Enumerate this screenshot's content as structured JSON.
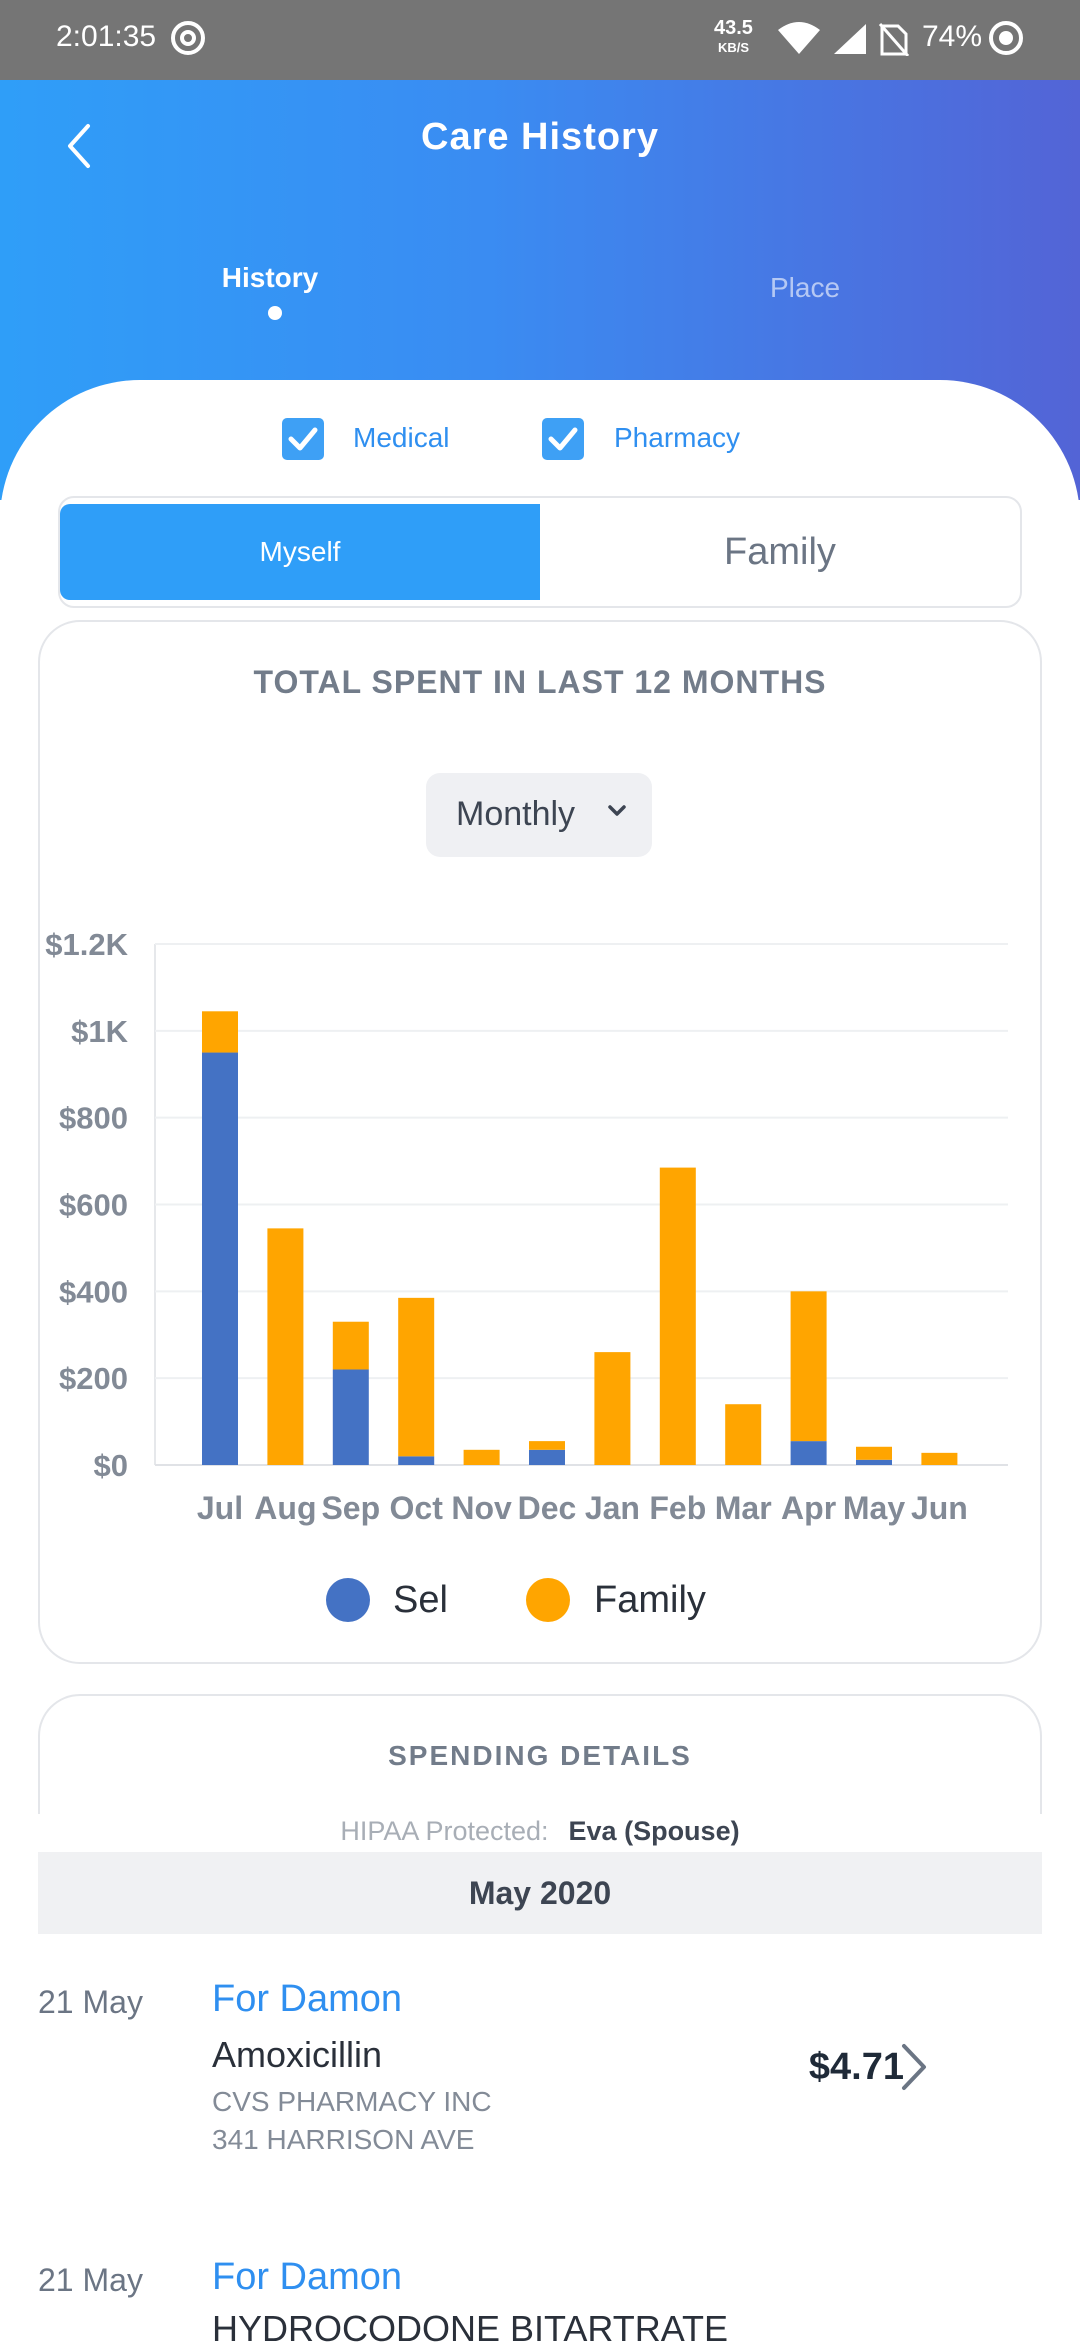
{
  "status_bar": {
    "time": "2:01:35",
    "net_speed": "43.5",
    "net_unit": "KB/S",
    "battery": "74%"
  },
  "header": {
    "title": "Care History",
    "tabs": [
      "History",
      "Place"
    ],
    "active_tab": "History",
    "gradient_start": "#2f9ef8",
    "gradient_end": "#5364d6"
  },
  "filters": {
    "medical": "Medical",
    "pharmacy": "Pharmacy"
  },
  "segment": {
    "myself": "Myself",
    "family": "Family"
  },
  "spend_card": {
    "title": "TOTAL SPENT IN LAST 12 MONTHS",
    "period": "Monthly"
  },
  "chart_data": {
    "type": "bar",
    "stacked": true,
    "title": "TOTAL SPENT IN LAST 12 MONTHS",
    "categories": [
      "Jul",
      "Aug",
      "Sep",
      "Oct",
      "Nov",
      "Dec",
      "Jan",
      "Feb",
      "Mar",
      "Apr",
      "May",
      "Jun"
    ],
    "series": [
      {
        "name": "Sel",
        "color": "#4472c4",
        "values": [
          950,
          0,
          220,
          20,
          0,
          35,
          0,
          0,
          0,
          55,
          12,
          0
        ]
      },
      {
        "name": "Family",
        "color": "#ffa500",
        "values": [
          95,
          545,
          110,
          365,
          35,
          20,
          260,
          685,
          140,
          345,
          30,
          28
        ]
      }
    ],
    "y_ticks": [
      "$0",
      "$200",
      "$400",
      "$600",
      "$800",
      "$1K",
      "$1.2K"
    ],
    "ylim": [
      0,
      1200
    ],
    "legend": "bottom",
    "grid": true
  },
  "details": {
    "title": "SPENDING DETAILS",
    "hipaa_label": "HIPAA Protected:",
    "hipaa_member": "Eva (Spouse)",
    "month": "May 2020",
    "transactions": [
      {
        "date": "21 May",
        "for": "For Damon",
        "name": "Amoxicillin",
        "vendor": "CVS PHARMACY INC",
        "address": "341 HARRISON AVE",
        "amount": "$4.71"
      },
      {
        "date": "21 May",
        "for": "For Damon",
        "name": "HYDROCODONE BITARTRATE"
      }
    ]
  }
}
